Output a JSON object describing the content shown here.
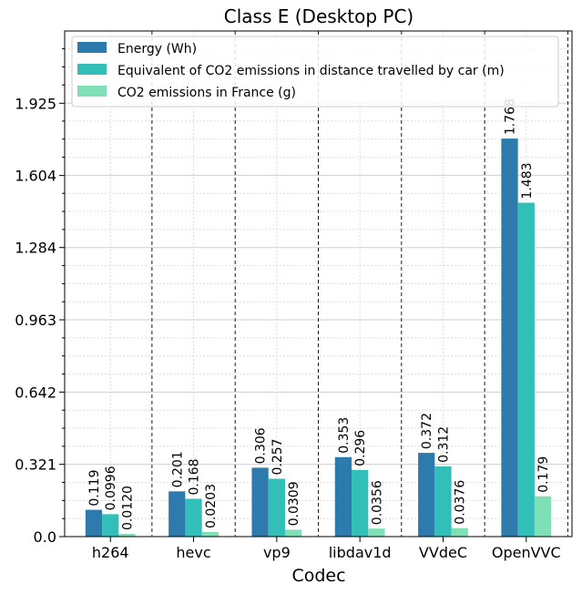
{
  "chart_data": {
    "type": "bar",
    "title": "Class E (Desktop PC)",
    "xlabel": "Codec",
    "ylabel": "",
    "categories": [
      "h264",
      "hevc",
      "vp9",
      "libdav1d",
      "VVdeC",
      "OpenVVC"
    ],
    "series": [
      {
        "name": "Energy (Wh)",
        "color": "#2c7bac",
        "values": [
          0.119,
          0.201,
          0.306,
          0.353,
          0.372,
          1.768
        ],
        "labels": [
          "0.119",
          "0.201",
          "0.306",
          "0.353",
          "0.372",
          "1.768"
        ]
      },
      {
        "name": "Equivalent of CO2 emissions in distance travelled by car (m)",
        "color": "#33bfb9",
        "values": [
          0.0996,
          0.168,
          0.257,
          0.296,
          0.312,
          1.483
        ],
        "labels": [
          "0.0996",
          "0.168",
          "0.257",
          "0.296",
          "0.312",
          "1.483"
        ]
      },
      {
        "name": "CO2 emissions in France (g)",
        "color": "#7fe0b6",
        "values": [
          0.012,
          0.0203,
          0.0309,
          0.0356,
          0.0376,
          0.179
        ],
        "labels": [
          "0.0120",
          "0.0203",
          "0.0309",
          "0.0356",
          "0.0376",
          "0.179"
        ]
      }
    ],
    "yticks": [
      0.0,
      0.321,
      0.642,
      0.963,
      1.284,
      1.604,
      1.925
    ],
    "ytick_labels": [
      "0.0",
      "0.321",
      "0.642",
      "0.963",
      "1.284",
      "1.604",
      "1.925"
    ],
    "ylim": [
      0,
      2.246
    ],
    "grid": true,
    "legend_position": "top"
  }
}
